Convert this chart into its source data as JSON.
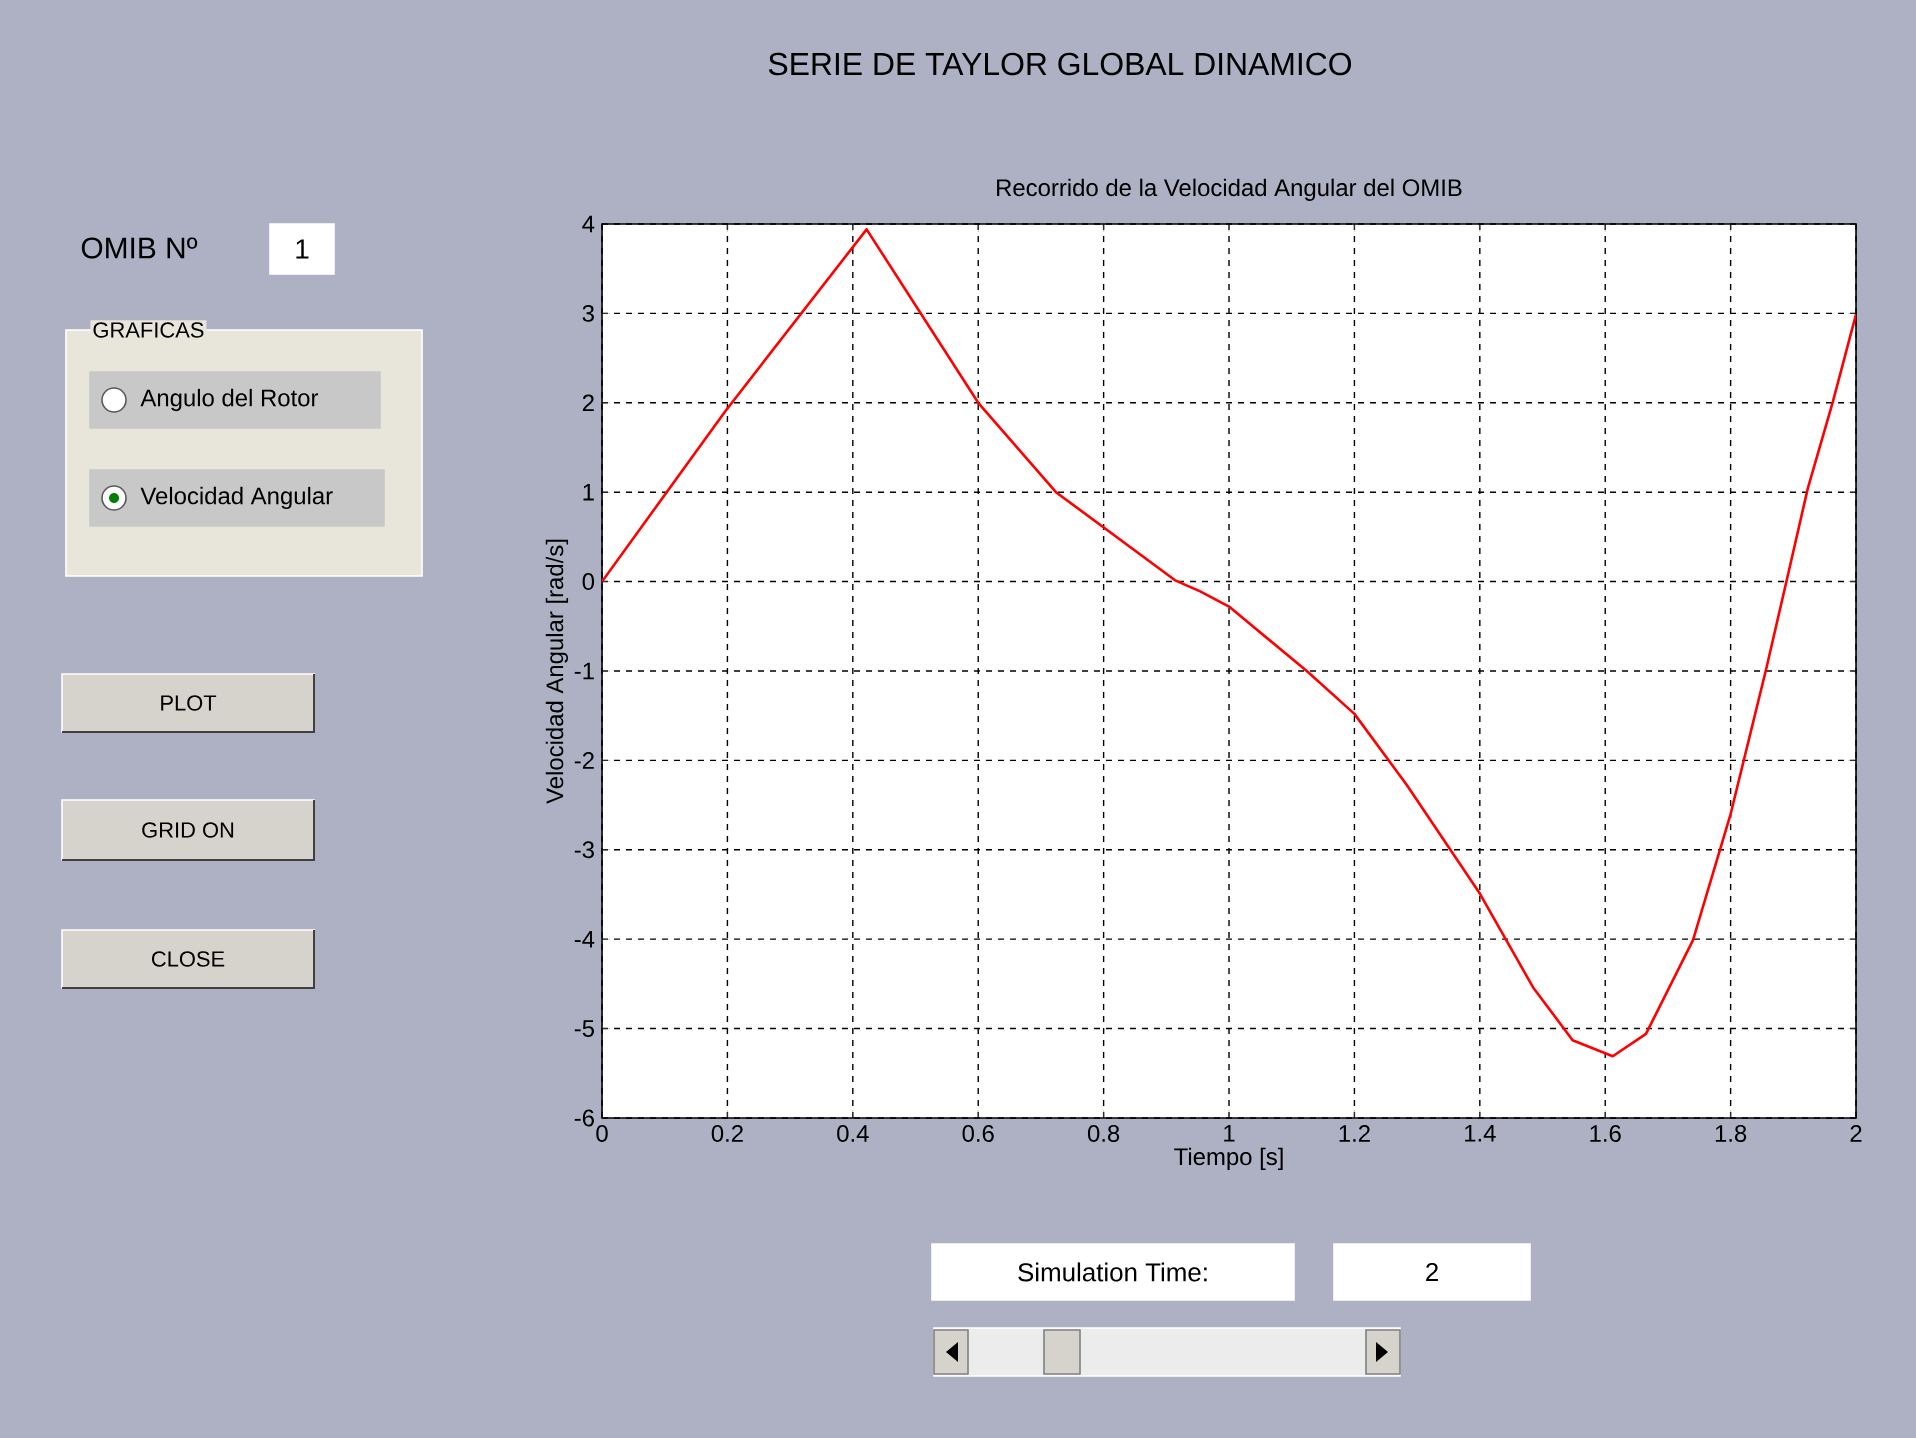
{
  "chart_data": {
    "type": "line",
    "title": "Recorrido de la Velocidad Angular del OMIB",
    "xlabel": "Tiempo [s]",
    "ylabel": "Velocidad Angular [rad/s]",
    "xlim": [
      0,
      2
    ],
    "ylim": [
      -6,
      4
    ],
    "xticks": [
      0,
      0.2,
      0.4,
      0.6,
      0.8,
      1,
      1.2,
      1.4,
      1.6,
      1.8,
      2
    ],
    "yticks": [
      -6,
      -5,
      -4,
      -3,
      -2,
      -1,
      0,
      1,
      2,
      3,
      4
    ],
    "grid": true,
    "series": [
      {
        "color": "#ff0000",
        "x": [
          0,
          0.196,
          0.422,
          0.6,
          0.724,
          0.915,
          0.954,
          1.0,
          1.124,
          1.2,
          1.283,
          1.4,
          1.485,
          1.548,
          1.612,
          1.665,
          1.74,
          1.8,
          1.857,
          1.889,
          1.923,
          1.963,
          2.0
        ],
        "values": [
          0,
          1.9,
          3.94,
          2.0,
          1.0,
          0.01,
          -0.11,
          -0.28,
          -1.0,
          -1.48,
          -2.27,
          -3.49,
          -4.54,
          -5.13,
          -5.31,
          -5.06,
          -4.01,
          -2.6,
          -0.97,
          0.0,
          1.04,
          2.01,
          2.99
        ]
      }
    ],
    "annotations": [
      "SERIE DE TAYLOR GLOBAL DINAMICO",
      "OMIB Nº",
      "1",
      "GRAFICAS",
      "Angulo del Rotor",
      "Velocidad Angular",
      "PLOT",
      "GRID ON",
      "CLOSE",
      "Simulation Time:",
      "2"
    ]
  }
}
